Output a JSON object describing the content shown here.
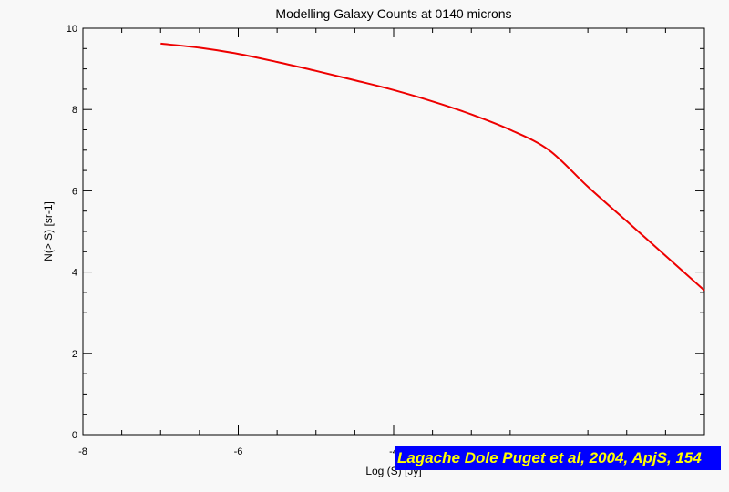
{
  "chart_data": {
    "type": "line",
    "title": "Modelling Galaxy Counts at 0140 microns",
    "xlabel": "Log (S) [Jy]",
    "ylabel": "N(> S) [sr-1]",
    "xlim": [
      -8,
      0
    ],
    "ylim": [
      0,
      10
    ],
    "xticks": [
      -8,
      -6,
      -4
    ],
    "yticks": [
      0,
      2,
      4,
      6,
      8,
      10
    ],
    "grid": false,
    "series": [
      {
        "color": "#ee0000",
        "x": [
          -7.0,
          -6.5,
          -6.0,
          -5.5,
          -5.0,
          -4.5,
          -4.0,
          -3.5,
          -3.0,
          -2.5,
          -2.0,
          -1.5,
          -1.0,
          -0.5,
          0.0
        ],
        "y": [
          9.62,
          9.52,
          9.37,
          9.17,
          8.95,
          8.72,
          8.48,
          8.2,
          7.88,
          7.5,
          7.0,
          6.1,
          5.25,
          4.4,
          3.55
        ]
      }
    ]
  },
  "credit": "Lagache Dole Puget et al, 2004, ApjS, 154"
}
